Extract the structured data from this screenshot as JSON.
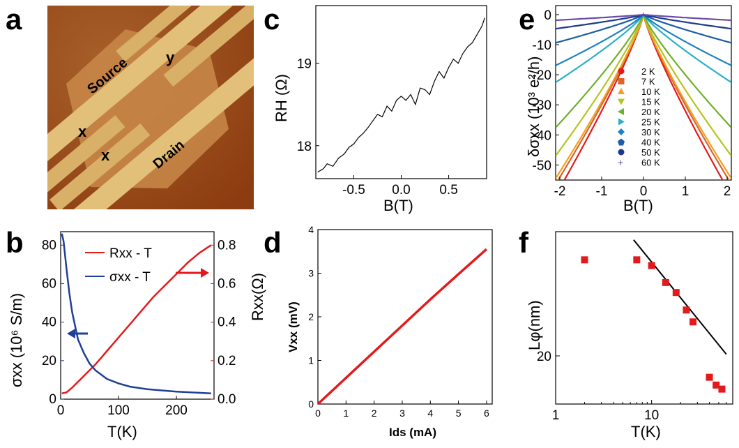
{
  "panel_letters": {
    "a": "a",
    "b": "b",
    "c": "c",
    "d": "d",
    "e": "e",
    "f": "f"
  },
  "panel_a": {
    "labels": {
      "source": "Source",
      "drain": "Drain",
      "y": "y",
      "x1": "x",
      "x2": "x"
    },
    "colors": {
      "background": "#a0561c",
      "flake": "#c47f3a",
      "electrode": "#e8c27c"
    }
  },
  "chart_data": [
    {
      "id": "b",
      "type": "line",
      "xlabel": "T(K)",
      "ylabel_left": "σxx (10⁶ S/m)",
      "ylabel_right": "Rxx(Ω)",
      "xlim": [
        0,
        265
      ],
      "ylim_left": [
        0,
        87
      ],
      "ylim_right": [
        0,
        0.87
      ],
      "xticks": [
        "0",
        "100",
        "200"
      ],
      "yticks_left": [
        "0",
        "20",
        "40",
        "60",
        "80"
      ],
      "yticks_right": [
        "0.0",
        "0.2",
        "0.4",
        "0.6",
        "0.8"
      ],
      "series": [
        {
          "name": "Rxx - T",
          "axis": "right",
          "color": "#e31a1c",
          "x": [
            2,
            10,
            20,
            30,
            40,
            50,
            60,
            80,
            100,
            120,
            140,
            160,
            180,
            200,
            220,
            240,
            260
          ],
          "y": [
            0.03,
            0.035,
            0.06,
            0.09,
            0.12,
            0.15,
            0.18,
            0.25,
            0.32,
            0.39,
            0.46,
            0.53,
            0.59,
            0.65,
            0.71,
            0.76,
            0.8
          ]
        },
        {
          "name": "σxx - T",
          "axis": "left",
          "color": "#1f3f99",
          "x": [
            2,
            5,
            10,
            15,
            20,
            30,
            40,
            50,
            60,
            80,
            100,
            120,
            150,
            200,
            260
          ],
          "y": [
            86,
            82,
            68,
            55,
            45,
            31,
            24,
            18.5,
            15,
            10.5,
            8.2,
            6.5,
            5.2,
            3.9,
            3
          ]
        }
      ],
      "legend": [
        "Rxx - T",
        "σxx - T"
      ]
    },
    {
      "id": "c",
      "type": "line",
      "xlabel": "B(T)",
      "ylabel": "RH (Ω)",
      "xlim": [
        -0.9,
        0.9
      ],
      "ylim": [
        17.6,
        19.7
      ],
      "xticks": [
        "-0.5",
        "0.0",
        "0.5"
      ],
      "yticks": [
        "18",
        "19"
      ],
      "series": [
        {
          "name": "",
          "color": "#000000",
          "x": [
            -0.88,
            -0.82,
            -0.78,
            -0.72,
            -0.66,
            -0.6,
            -0.55,
            -0.5,
            -0.45,
            -0.4,
            -0.35,
            -0.3,
            -0.25,
            -0.2,
            -0.15,
            -0.1,
            -0.05,
            0.0,
            0.05,
            0.1,
            0.15,
            0.2,
            0.25,
            0.3,
            0.35,
            0.4,
            0.45,
            0.5,
            0.55,
            0.6,
            0.65,
            0.7,
            0.75,
            0.8,
            0.85,
            0.88
          ],
          "y": [
            17.68,
            17.72,
            17.78,
            17.75,
            17.85,
            17.9,
            17.98,
            18.02,
            18.1,
            18.15,
            18.22,
            18.3,
            18.38,
            18.35,
            18.48,
            18.42,
            18.55,
            18.6,
            18.55,
            18.62,
            18.5,
            18.7,
            18.68,
            18.62,
            18.78,
            18.9,
            18.82,
            18.95,
            19.05,
            19.0,
            19.12,
            19.2,
            19.25,
            19.35,
            19.45,
            19.55
          ]
        }
      ]
    },
    {
      "id": "d",
      "type": "line",
      "xlabel": "Ids (mA)",
      "ylabel": "Vxx (mV)",
      "xlim": [
        0,
        6.2
      ],
      "ylim": [
        0,
        4
      ],
      "xticks": [
        "0",
        "1",
        "2",
        "3",
        "4",
        "5",
        "6"
      ],
      "yticks": [
        "0",
        "1",
        "2",
        "3",
        "4"
      ],
      "series": [
        {
          "name": "",
          "color": "#e31a1c",
          "x": [
            0,
            1,
            2,
            3,
            4,
            5,
            6
          ],
          "y": [
            0,
            0.6,
            1.2,
            1.8,
            2.4,
            2.98,
            3.55
          ]
        }
      ]
    },
    {
      "id": "e",
      "type": "line",
      "xlabel": "B(T)",
      "ylabel": "δσxx (10³ e²/h)",
      "xlim": [
        -2.1,
        2.1
      ],
      "ylim": [
        -55,
        3
      ],
      "xticks": [
        "-2",
        "-1",
        "0",
        "1",
        "2"
      ],
      "yticks": [
        "0",
        "-10",
        "-20",
        "-30",
        "-40",
        "-50"
      ],
      "legend": [
        "2  K",
        "7  K",
        "10  K",
        "15  K",
        "20  K",
        "25  K",
        "30  K",
        "40  K",
        "50  K",
        "60  K"
      ],
      "series": [
        {
          "name": "2  K",
          "color": "#e31a1c",
          "slope": 32
        },
        {
          "name": "7  K",
          "color": "#d9662a",
          "slope": 30
        },
        {
          "name": "10  K",
          "color": "#f0a020",
          "slope": 29
        },
        {
          "name": "15  K",
          "color": "#b8c41c",
          "slope": 25
        },
        {
          "name": "20  K",
          "color": "#6fb02a",
          "slope": 20
        },
        {
          "name": "25  K",
          "color": "#2ab0c8",
          "slope": 12
        },
        {
          "name": "30  K",
          "color": "#1c82c4",
          "slope": 9
        },
        {
          "name": "40  K",
          "color": "#1c5ca8",
          "slope": 5
        },
        {
          "name": "50  K",
          "color": "#1c3a8c",
          "slope": 2.5
        },
        {
          "name": "60  K",
          "color": "#6a4ca8",
          "slope": 1
        }
      ]
    },
    {
      "id": "f",
      "type": "scatter",
      "xlabel": "T(K)",
      "ylabel": "Lφ(nm)",
      "xscale": "log",
      "yscale": "log",
      "xlim": [
        1,
        70
      ],
      "ylim": [
        15,
        42
      ],
      "xticks": [
        "1",
        "10"
      ],
      "yticks": [
        "20"
      ],
      "series": [
        {
          "name": "",
          "color": "#e31a1c",
          "marker": "square",
          "x": [
            2,
            7,
            10,
            14,
            18,
            23,
            27,
            40,
            47,
            54
          ],
          "y": [
            35.5,
            35.5,
            34.3,
            31.0,
            29.2,
            26.3,
            24.5,
            17.6,
            16.8,
            16.4
          ]
        },
        {
          "name": "",
          "color": "#000000",
          "type": "line",
          "x": [
            6.5,
            60
          ],
          "y": [
            40,
            20.2
          ]
        }
      ]
    }
  ]
}
